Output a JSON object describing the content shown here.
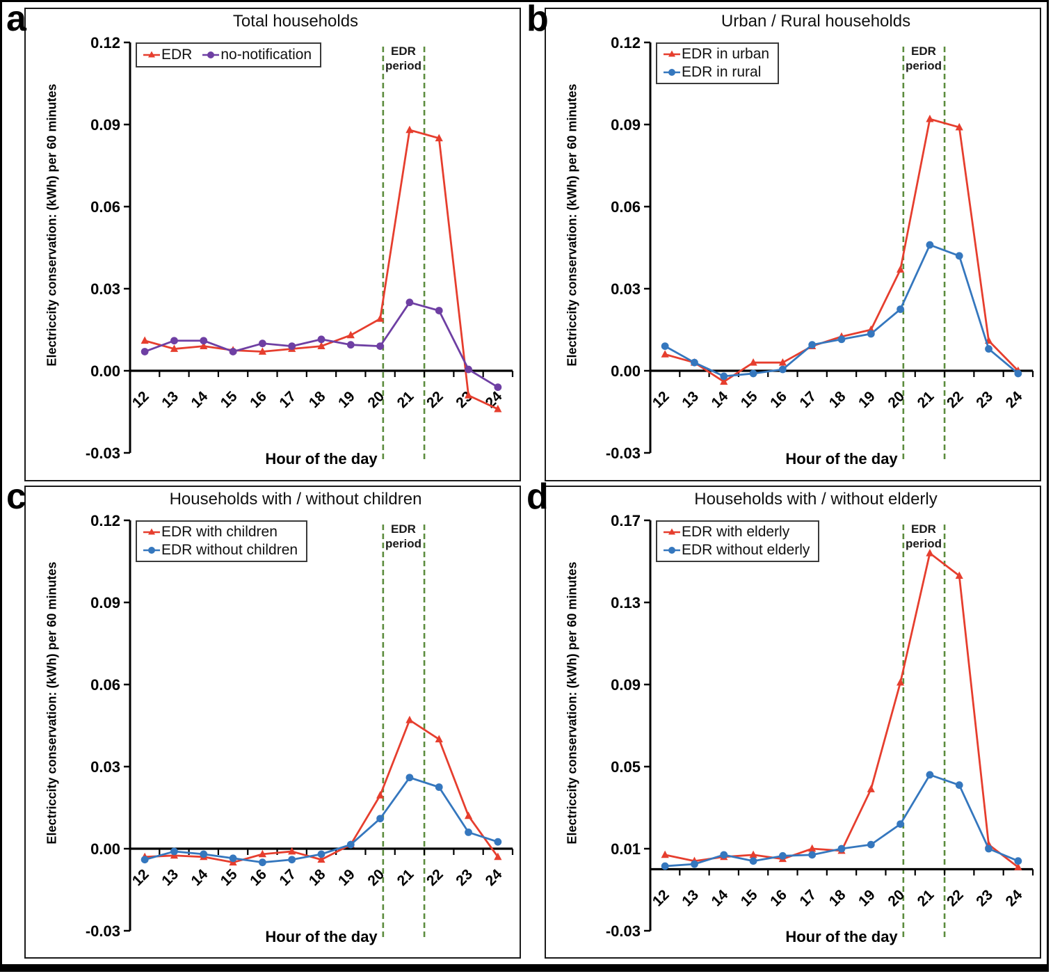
{
  "figure_name": "Hourly electricity conservation panels",
  "colors": {
    "red_series": "#E63E2E",
    "purple_series": "#6E3FA3",
    "blue_series": "#3577BE",
    "edr_period_line": "#5C8C3E",
    "axis": "#000000"
  },
  "chart_data": [
    {
      "type": "line",
      "panel_label": "a",
      "title": "Total households",
      "ylabel": "Electriccity conservation: (kWh) per 60 minutes",
      "xlabel": "Hour of the day",
      "x": [
        "12",
        "13",
        "14",
        "15",
        "16",
        "17",
        "18",
        "19",
        "20",
        "21",
        "22",
        "23",
        "24"
      ],
      "ylim": [
        -0.03,
        0.12
      ],
      "yticks": [
        0.12,
        0.09,
        0.06,
        0.03,
        0.0,
        -0.03
      ],
      "ytick_labels": [
        "0.12",
        "0.09",
        "0.06",
        "0.03",
        "0.00",
        "-0.03"
      ],
      "x_axis_cross": 0,
      "grid": false,
      "legend_position": "top-left",
      "legend_layout": "row",
      "annotation": {
        "label_line1": "EDR",
        "label_line2": "period",
        "lines_at_hours": [
          20.1,
          21.5
        ]
      },
      "series": [
        {
          "name": "EDR",
          "marker": "triangle",
          "color": "#E63E2E",
          "values": [
            0.011,
            0.008,
            0.009,
            0.0075,
            0.007,
            0.008,
            0.009,
            0.013,
            0.019,
            0.088,
            0.085,
            -0.009,
            -0.014
          ]
        },
        {
          "name": "no-notification",
          "marker": "circle",
          "color": "#6E3FA3",
          "values": [
            0.007,
            0.011,
            0.011,
            0.007,
            0.01,
            0.009,
            0.0115,
            0.0095,
            0.009,
            0.025,
            0.022,
            0.0005,
            -0.006
          ]
        }
      ]
    },
    {
      "type": "line",
      "panel_label": "b",
      "title": "Urban / Rural households",
      "ylabel": "Electriccity conservation: (kWh) per 60 minutes",
      "xlabel": "Hour of the day",
      "x": [
        "12",
        "13",
        "14",
        "15",
        "16",
        "17",
        "18",
        "19",
        "20",
        "21",
        "22",
        "23",
        "24"
      ],
      "ylim": [
        -0.03,
        0.12
      ],
      "yticks": [
        0.12,
        0.09,
        0.06,
        0.03,
        0.0,
        -0.03
      ],
      "ytick_labels": [
        "0.12",
        "0.09",
        "0.06",
        "0.03",
        "0.00",
        "-0.03"
      ],
      "x_axis_cross": 0,
      "grid": false,
      "legend_position": "top-left",
      "legend_layout": "col",
      "annotation": {
        "label_line1": "EDR",
        "label_line2": "period",
        "lines_at_hours": [
          20.1,
          21.5
        ]
      },
      "series": [
        {
          "name": "EDR in urban",
          "marker": "triangle",
          "color": "#E63E2E",
          "values": [
            0.006,
            0.003,
            -0.004,
            0.003,
            0.003,
            0.009,
            0.0125,
            0.015,
            0.037,
            0.092,
            0.089,
            0.011,
            0.0
          ]
        },
        {
          "name": "EDR in rural",
          "marker": "circle",
          "color": "#3577BE",
          "values": [
            0.009,
            0.003,
            -0.002,
            -0.001,
            0.0005,
            0.0095,
            0.0115,
            0.0135,
            0.0225,
            0.046,
            0.042,
            0.008,
            -0.001
          ]
        }
      ]
    },
    {
      "type": "line",
      "panel_label": "c",
      "title": "Households with / without children",
      "ylabel": "Electriccity conservation: (kWh) per 60 minutes",
      "xlabel": "Hour of the day",
      "x": [
        "12",
        "13",
        "14",
        "15",
        "16",
        "17",
        "18",
        "19",
        "20",
        "21",
        "22",
        "23",
        "24"
      ],
      "ylim": [
        -0.03,
        0.12
      ],
      "yticks": [
        0.12,
        0.09,
        0.06,
        0.03,
        0.0,
        -0.03
      ],
      "ytick_labels": [
        "0.12",
        "0.09",
        "0.06",
        "0.03",
        "0.00",
        "-0.03"
      ],
      "x_axis_cross": 0,
      "grid": false,
      "legend_position": "top-left",
      "legend_layout": "col",
      "annotation": {
        "label_line1": "EDR",
        "label_line2": "period",
        "lines_at_hours": [
          20.1,
          21.5
        ]
      },
      "series": [
        {
          "name": "EDR with children",
          "marker": "triangle",
          "color": "#E63E2E",
          "values": [
            -0.003,
            -0.0025,
            -0.003,
            -0.005,
            -0.002,
            -0.001,
            -0.004,
            0.0015,
            0.0195,
            0.047,
            0.04,
            0.012,
            -0.003
          ]
        },
        {
          "name": "EDR without children",
          "marker": "circle",
          "color": "#3577BE",
          "values": [
            -0.004,
            -0.001,
            -0.002,
            -0.0035,
            -0.005,
            -0.004,
            -0.002,
            0.0015,
            0.011,
            0.026,
            0.0225,
            0.006,
            0.0025
          ]
        }
      ]
    },
    {
      "type": "line",
      "panel_label": "d",
      "title": "Households with / without elderly",
      "ylabel": "Electriccity conservation: (kWh) per 60 minutes",
      "xlabel": "Hour of the day",
      "x": [
        "12",
        "13",
        "14",
        "15",
        "16",
        "17",
        "18",
        "19",
        "20",
        "21",
        "22",
        "23",
        "24"
      ],
      "ylim": [
        -0.03,
        0.17
      ],
      "yticks": [
        0.17,
        0.13,
        0.09,
        0.05,
        0.01,
        -0.03
      ],
      "ytick_labels": [
        "0.17",
        "0.13",
        "0.09",
        "0.05",
        "0.01",
        "-0.03"
      ],
      "x_axis_cross": 0,
      "grid": false,
      "legend_position": "top-left",
      "legend_layout": "col",
      "annotation": {
        "label_line1": "EDR",
        "label_line2": "period",
        "lines_at_hours": [
          20.1,
          21.5
        ]
      },
      "series": [
        {
          "name": "EDR with elderly",
          "marker": "triangle",
          "color": "#E63E2E",
          "values": [
            0.007,
            0.004,
            0.006,
            0.007,
            0.005,
            0.01,
            0.009,
            0.039,
            0.091,
            0.154,
            0.143,
            0.012,
            0.001
          ]
        },
        {
          "name": "EDR without elderly",
          "marker": "circle",
          "color": "#3577BE",
          "values": [
            0.0015,
            0.0025,
            0.007,
            0.004,
            0.0065,
            0.007,
            0.01,
            0.012,
            0.022,
            0.046,
            0.041,
            0.01,
            0.004
          ]
        }
      ]
    }
  ]
}
